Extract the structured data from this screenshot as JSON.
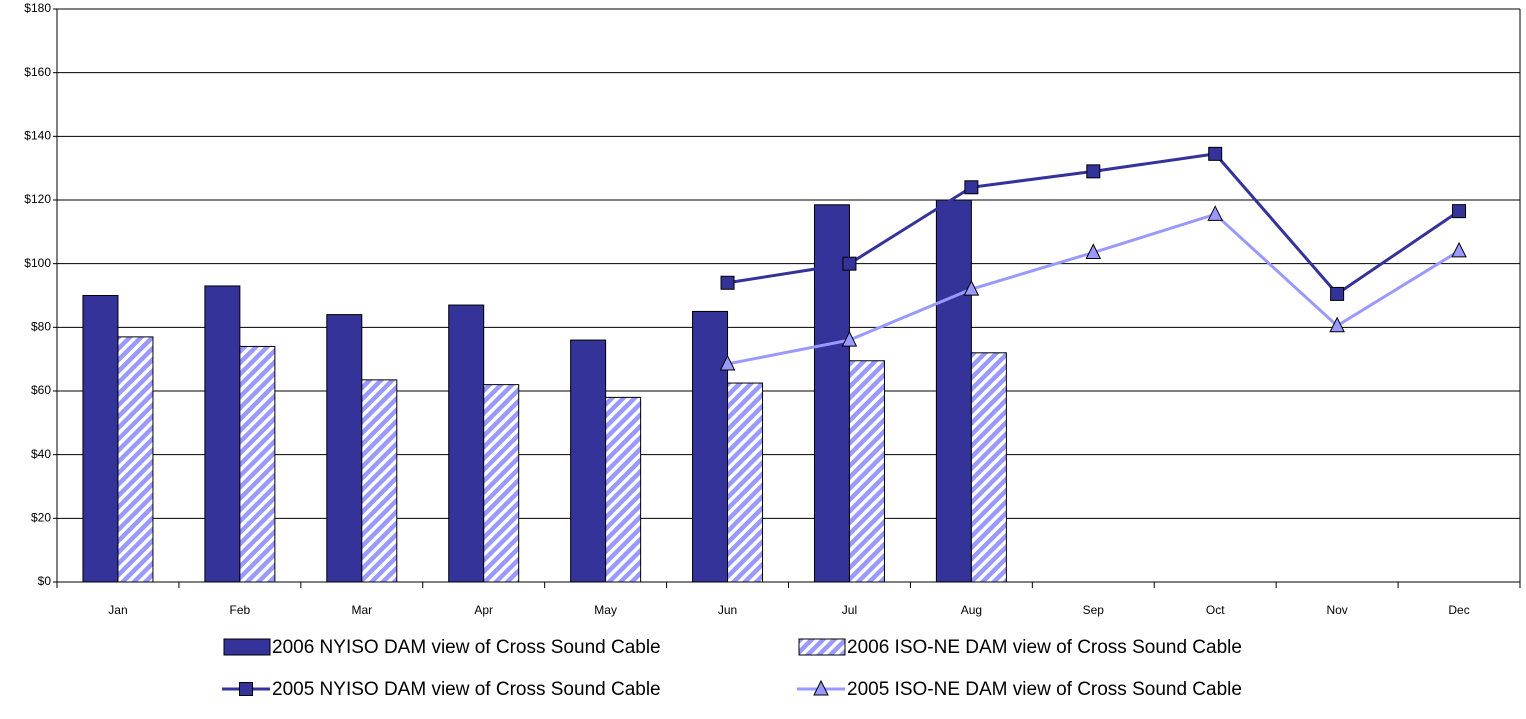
{
  "chart_data": {
    "type": "bar",
    "categories": [
      "Jan",
      "Feb",
      "Mar",
      "Apr",
      "May",
      "Jun",
      "Jul",
      "Aug",
      "Sep",
      "Oct",
      "Nov",
      "Dec"
    ],
    "series": [
      {
        "name": "2006 NYISO DAM view of Cross Sound Cable",
        "type": "bar",
        "color": "#333399",
        "hatch": false,
        "values": [
          90,
          93,
          84,
          87,
          76,
          85,
          118.5,
          120,
          null,
          null,
          null,
          null
        ]
      },
      {
        "name": "2006 ISO-NE DAM view of Cross Sound Cable",
        "type": "bar",
        "color": "#9999ff",
        "hatch": true,
        "values": [
          77,
          74,
          63.5,
          62,
          58,
          62.5,
          69.5,
          72,
          null,
          null,
          null,
          null
        ]
      },
      {
        "name": "2005 NYISO DAM view of Cross Sound Cable",
        "type": "line",
        "color": "#333399",
        "marker": "square",
        "values": [
          null,
          null,
          null,
          null,
          null,
          94,
          100,
          124,
          129,
          134.5,
          90.5,
          116.5
        ]
      },
      {
        "name": "2005 ISO-NE DAM view of Cross Sound Cable",
        "type": "line",
        "color": "#9999ff",
        "marker": "triangle",
        "values": [
          null,
          null,
          null,
          null,
          null,
          68.5,
          76,
          92,
          103.5,
          115.5,
          80.5,
          104
        ]
      }
    ],
    "ylim": [
      0,
      180
    ],
    "yticks": [
      {
        "value": 0,
        "label": "$0"
      },
      {
        "value": 20,
        "label": "$20"
      },
      {
        "value": 40,
        "label": "$40"
      },
      {
        "value": 60,
        "label": "$60"
      },
      {
        "value": 80,
        "label": "$80"
      },
      {
        "value": 100,
        "label": "$100"
      },
      {
        "value": 120,
        "label": "$120"
      },
      {
        "value": 140,
        "label": "$140"
      },
      {
        "value": 160,
        "label": "$160"
      },
      {
        "value": 180,
        "label": "$180"
      }
    ],
    "grid": true
  }
}
